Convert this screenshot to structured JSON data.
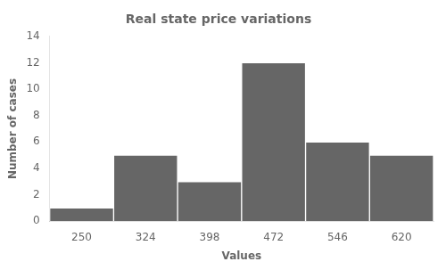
{
  "chart_data": {
    "type": "histogram",
    "title": "Real state price variations",
    "xlabel": "Values",
    "ylabel": "Number of cases",
    "bins": [
      213,
      287,
      361,
      435,
      509,
      583,
      657
    ],
    "values": [
      1,
      5,
      3,
      12,
      6,
      5
    ],
    "color": "#666666",
    "xlim": [
      213,
      657
    ],
    "xticks": [
      250,
      324,
      398,
      472,
      546,
      620
    ],
    "ylim": [
      0,
      14
    ],
    "yticks": [
      0,
      2,
      4,
      6,
      8,
      10,
      12,
      14
    ],
    "grid": false
  }
}
